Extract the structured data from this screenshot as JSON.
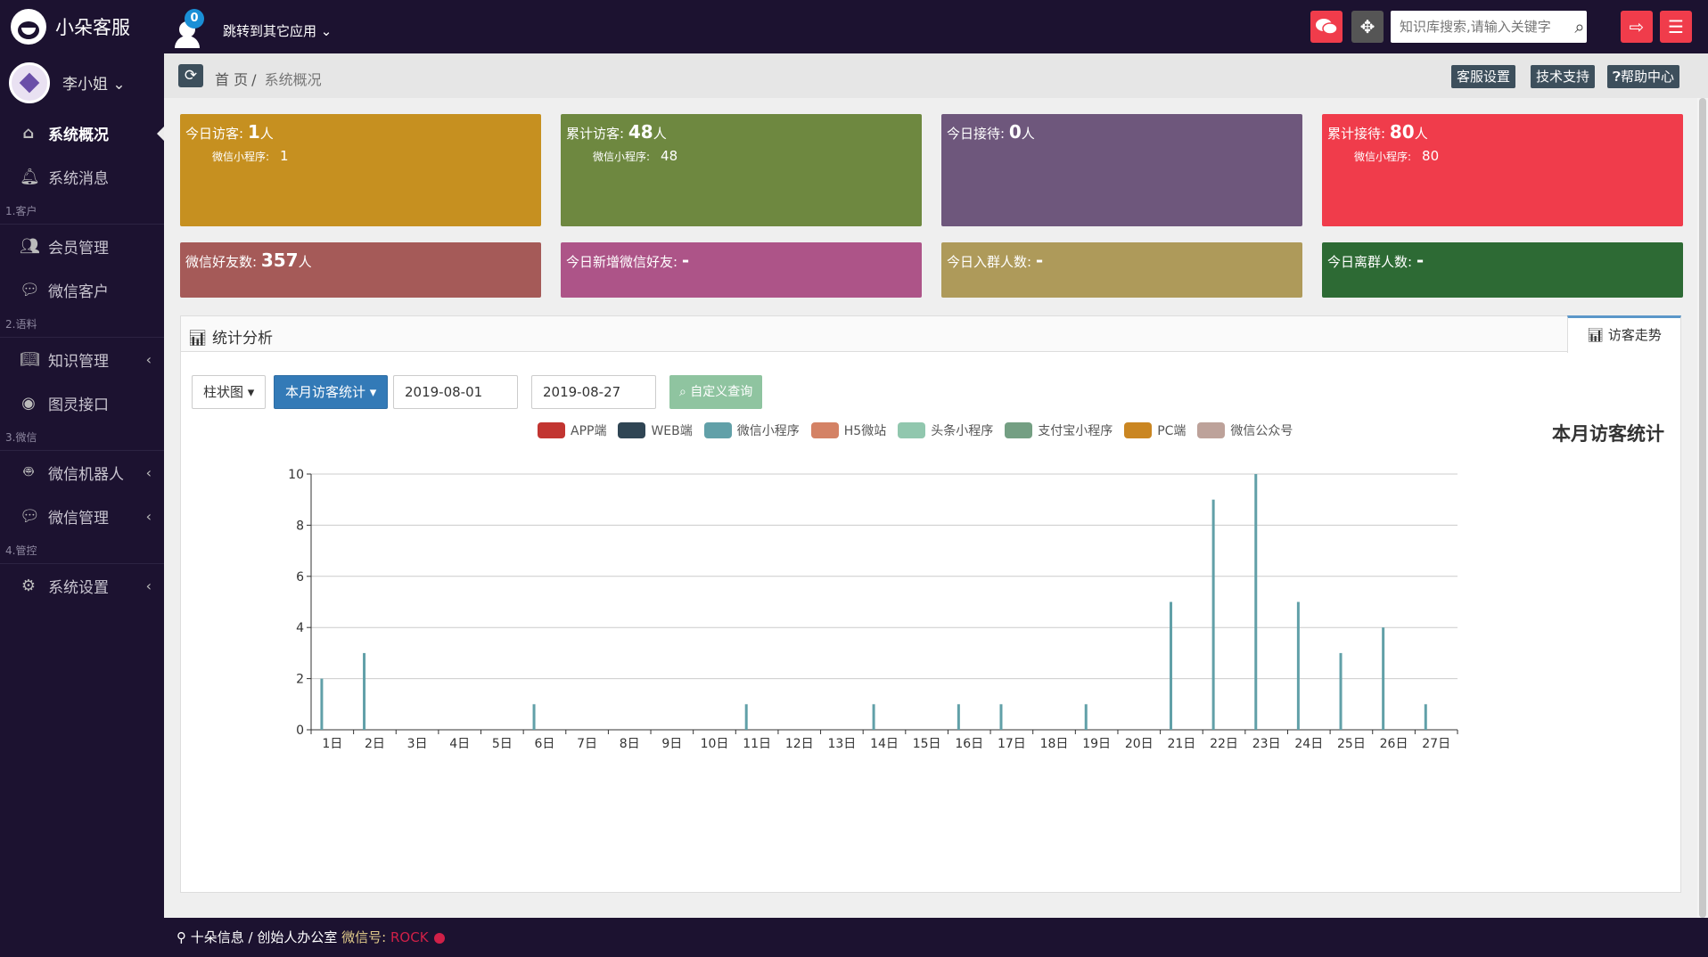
{
  "app": {
    "name": "小朵客服",
    "jump_label": "跳转到其它应用",
    "notification_count": "0"
  },
  "search": {
    "placeholder": "知识库搜索,请输入关键字"
  },
  "user": {
    "name": "李小姐"
  },
  "sidebar": {
    "items": [
      {
        "label": "系统概况",
        "icon": "home-icon"
      },
      {
        "label": "系统消息",
        "icon": "bell-icon"
      },
      {
        "section": "1.客户"
      },
      {
        "label": "会员管理",
        "icon": "users-icon"
      },
      {
        "label": "微信客户",
        "icon": "wechat-icon"
      },
      {
        "section": "2.语料"
      },
      {
        "label": "知识管理",
        "icon": "book-icon"
      },
      {
        "label": "图灵接口",
        "icon": "target-icon"
      },
      {
        "section": "3.微信"
      },
      {
        "label": "微信机器人",
        "icon": "android-icon"
      },
      {
        "label": "微信管理",
        "icon": "wechat-icon"
      },
      {
        "section": "4.管控"
      },
      {
        "label": "系统设置",
        "icon": "gear-icon"
      }
    ]
  },
  "breadcrumb": {
    "home": "首 页",
    "current": "系统概况"
  },
  "toolbar": {
    "settings": "客服设置",
    "support": "技术支持",
    "help": "帮助中心"
  },
  "stats": {
    "today_visitors": {
      "label": "今日访客:",
      "value": "1",
      "unit": "人",
      "sub_label": "微信小程序:",
      "sub_value": "1",
      "color": "#c69020"
    },
    "total_visitors": {
      "label": "累计访客:",
      "value": "48",
      "unit": "人",
      "sub_label": "微信小程序:",
      "sub_value": "48",
      "color": "#6e8840"
    },
    "today_reception": {
      "label": "今日接待:",
      "value": "0",
      "unit": "人",
      "color": "#6e577c"
    },
    "total_reception": {
      "label": "累计接待:",
      "value": "80",
      "unit": "人",
      "sub_label": "微信小程序:",
      "sub_value": "80",
      "color": "#f03c4b"
    },
    "wechat_friends": {
      "label": "微信好友数:",
      "value": "357",
      "unit": "人",
      "color": "#a55a58"
    },
    "today_new_friends": {
      "label": "今日新增微信好友:",
      "value": "-",
      "color": "#ad5488"
    },
    "today_join_group": {
      "label": "今日入群人数:",
      "value": "-",
      "color": "#ae9a5a"
    },
    "today_leave_group": {
      "label": "今日离群人数:",
      "value": "-",
      "color": "#2d6a34"
    }
  },
  "panel": {
    "title": "统计分析",
    "tab": "访客走势",
    "chart_type_select": "柱状图",
    "period_select": "本月访客统计",
    "date_from": "2019-08-01",
    "date_to": "2019-08-27",
    "query_button": "自定义查询"
  },
  "chart_data": {
    "type": "bar",
    "title": "本月访客统计",
    "legend": [
      {
        "name": "APP端",
        "color": "#c23531"
      },
      {
        "name": "WEB端",
        "color": "#2f4554"
      },
      {
        "name": "微信小程序",
        "color": "#61a0a8"
      },
      {
        "name": "H5微站",
        "color": "#d48265"
      },
      {
        "name": "头条小程序",
        "color": "#91c7ae"
      },
      {
        "name": "支付宝小程序",
        "color": "#749f83"
      },
      {
        "name": "PC端",
        "color": "#ca8622"
      },
      {
        "name": "微信公众号",
        "color": "#bda29a"
      }
    ],
    "categories": [
      "1日",
      "2日",
      "3日",
      "4日",
      "5日",
      "6日",
      "7日",
      "8日",
      "9日",
      "10日",
      "11日",
      "12日",
      "13日",
      "14日",
      "15日",
      "16日",
      "17日",
      "18日",
      "19日",
      "20日",
      "21日",
      "22日",
      "23日",
      "24日",
      "25日",
      "26日",
      "27日"
    ],
    "series": [
      {
        "name": "微信小程序",
        "color": "#61a0a8",
        "values": [
          2,
          3,
          0,
          0,
          0,
          1,
          0,
          0,
          0,
          0,
          1,
          0,
          0,
          1,
          0,
          1,
          1,
          0,
          1,
          0,
          5,
          9,
          10,
          5,
          3,
          4,
          1
        ]
      }
    ],
    "ylim": [
      0,
      10
    ],
    "yticks": [
      0,
      2,
      4,
      6,
      8,
      10
    ],
    "grid": true,
    "legend_position": "top"
  },
  "footer": {
    "location": "十朵信息 / 创始人办公室",
    "wechat_label": "微信号:",
    "wechat_id": "ROCK"
  }
}
